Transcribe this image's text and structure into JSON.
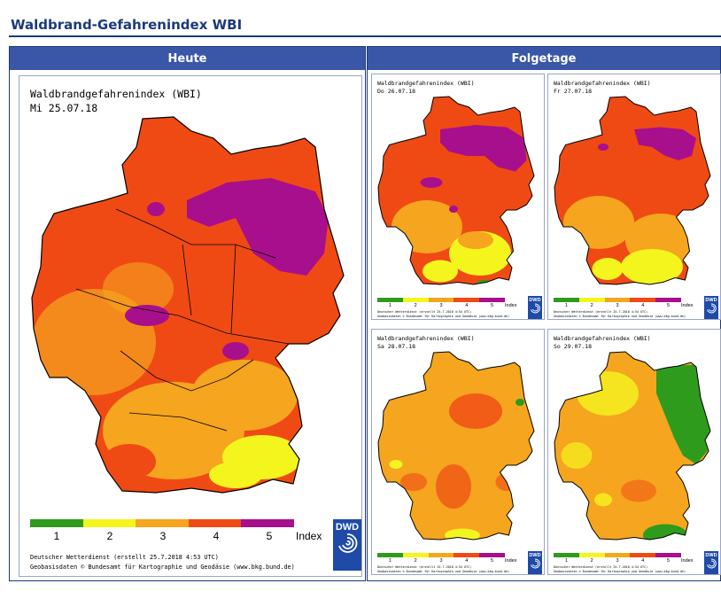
{
  "page": {
    "title": "Waldbrand-Gefahrenindex WBI"
  },
  "panels": {
    "today": "Heute",
    "following": "Folgetage"
  },
  "legend": {
    "colors": [
      "#2e9b1d",
      "#f5f51e",
      "#f5a51e",
      "#f04a14",
      "#a80f8c"
    ],
    "labels": [
      "1",
      "2",
      "3",
      "4",
      "5"
    ],
    "unit": "Index"
  },
  "credits": {
    "line1": "Deutscher Wetterdienst (erstellt 25.7.2018 4:53 UTC)",
    "line1_small": "Deutscher Wetterdienst (erstellt 25.7.2018 4:54 UTC)",
    "line2": "Geobasisdaten © Bundesamt für Kartographie und Geodäsie (www.bkg.bund.de)"
  },
  "logo": {
    "text": "DWD",
    "icon": "dwd-swirl-icon"
  },
  "maps": [
    {
      "title": "Waldbrandgefahrenindex (WBI)",
      "date": "Mi 25.07.18"
    },
    {
      "title": "Waldbrandgefahrenindex (WBI)",
      "date": "Do 26.07.18"
    },
    {
      "title": "Waldbrandgefahrenindex (WBI)",
      "date": "Fr 27.07.18"
    },
    {
      "title": "Waldbrandgefahrenindex (WBI)",
      "date": "Sa 28.07.18"
    },
    {
      "title": "Waldbrandgefahrenindex (WBI)",
      "date": "So 29.07.18"
    }
  ]
}
